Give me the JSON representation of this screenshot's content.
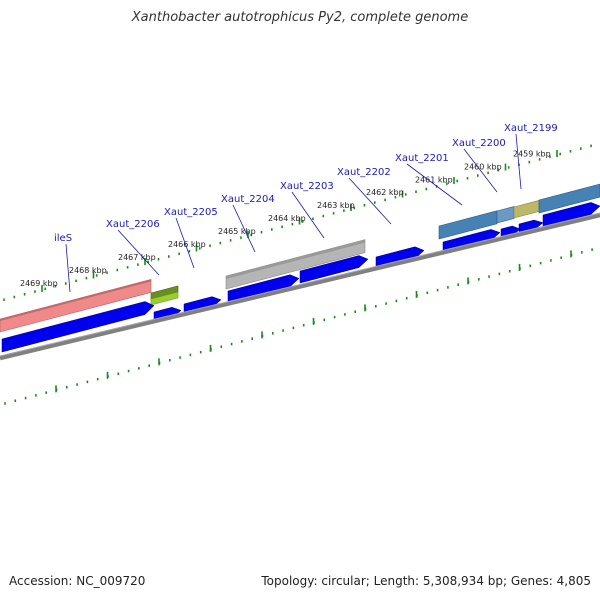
{
  "title": "Xanthobacter autotrophicus Py2, complete genome",
  "footer": {
    "accession": "Accession: NC_009720",
    "summary": "Topology: circular; Length: 5,308,934 bp; Genes: 4,805"
  },
  "scale_labels": [
    "2469 kbp",
    "2468 kbp",
    "2467 kbp",
    "2466 kbp",
    "2465 kbp",
    "2464 kbp",
    "2463 kbp",
    "2462 kbp",
    "2461 kbp",
    "2460 kbp",
    "2459 kbp"
  ],
  "gene_labels": [
    "ileS",
    "Xaut_2206",
    "Xaut_2205",
    "Xaut_2204",
    "Xaut_2203",
    "Xaut_2202",
    "Xaut_2201",
    "Xaut_2200",
    "Xaut_2199"
  ],
  "colors": {
    "cds": "#0000ee",
    "backbone": "#808080",
    "ticks": "#1a8a1a",
    "gene_label": "#1a1ab8",
    "pink_feature": "#f08a8a",
    "olive_feature": "#6b8e23",
    "lime_feature": "#9acd32",
    "gray_feature": "#b5b5b5",
    "steel_feature": "#4682b4",
    "khaki_feature": "#bdb76b"
  }
}
